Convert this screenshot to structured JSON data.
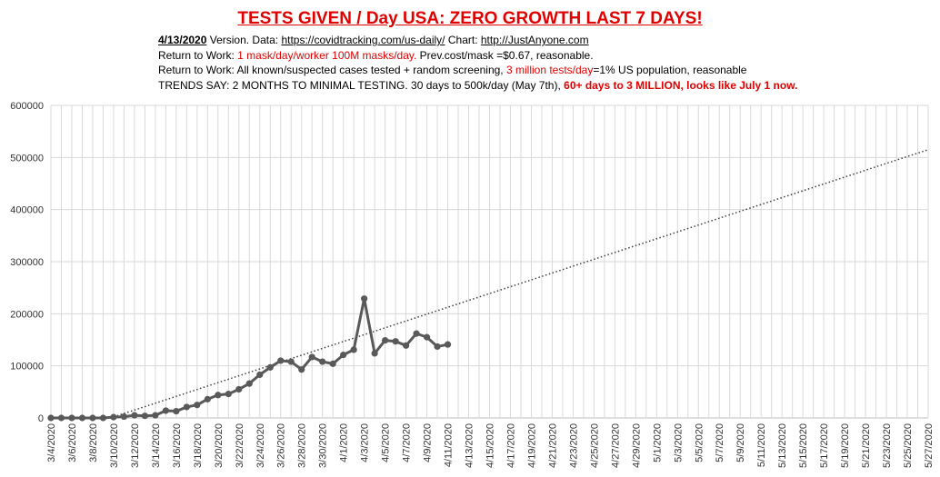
{
  "chart_data": {
    "type": "line",
    "title": "TESTS GIVEN / Day USA:  ZERO GROWTH LAST 7 DAYS!",
    "subtitle_lines": [
      {
        "parts": [
          {
            "text": "4/13/2020",
            "style": "bold ul"
          },
          {
            "text": " Version.  Data: ",
            "style": ""
          },
          {
            "text": "https://covidtracking.com/us-daily/",
            "style": "ul"
          },
          {
            "text": " Chart: ",
            "style": ""
          },
          {
            "text": "http://JustAnyone.com",
            "style": "ul"
          }
        ]
      },
      {
        "parts": [
          {
            "text": "Return to Work: ",
            "style": ""
          },
          {
            "text": "1 mask/day/worker 100M masks/day.",
            "style": "red"
          },
          {
            "text": "  Prev.cost/mask =$0.67, reasonable.",
            "style": ""
          }
        ]
      },
      {
        "parts": [
          {
            "text": "Return to Work: All known/suspected cases tested + random screening, ",
            "style": ""
          },
          {
            "text": "3 million tests/day",
            "style": "red"
          },
          {
            "text": "=1% US population, reasonable",
            "style": ""
          }
        ]
      },
      {
        "parts": [
          {
            "text": "TRENDS SAY:  2 MONTHS TO MINIMAL TESTING.  30 days to 500k/day (May 7th), ",
            "style": ""
          },
          {
            "text": "60+ days to 3 MILLION, looks like July 1 now.",
            "style": "red bold"
          }
        ]
      }
    ],
    "x_tick_labels": [
      "3/4/2020",
      "3/6/2020",
      "3/8/2020",
      "3/10/2020",
      "3/12/2020",
      "3/14/2020",
      "3/16/2020",
      "3/18/2020",
      "3/20/2020",
      "3/22/2020",
      "3/24/2020",
      "3/26/2020",
      "3/28/2020",
      "3/30/2020",
      "4/1/2020",
      "4/3/2020",
      "4/5/2020",
      "4/7/2020",
      "4/9/2020",
      "4/11/2020",
      "4/13/2020",
      "4/15/2020",
      "4/17/2020",
      "4/19/2020",
      "4/21/2020",
      "4/23/2020",
      "4/25/2020",
      "4/27/2020",
      "4/29/2020",
      "5/1/2020",
      "5/3/2020",
      "5/5/2020",
      "5/7/2020",
      "5/9/2020",
      "5/11/2020",
      "5/13/2020",
      "5/15/2020",
      "5/17/2020",
      "5/19/2020",
      "5/21/2020",
      "5/23/2020",
      "5/25/2020",
      "5/27/2020"
    ],
    "y_ticks": [
      "0",
      "100000",
      "200000",
      "300000",
      "400000",
      "500000",
      "600000"
    ],
    "ylim": [
      0,
      600000
    ],
    "x_range_days": [
      0,
      84
    ],
    "grid": true,
    "series": [
      {
        "values": [
          0,
          0,
          0,
          0,
          0,
          0,
          1500,
          2500,
          5000,
          4000,
          5000,
          14000,
          13000,
          21000,
          25000,
          36000,
          44000,
          46000,
          55000,
          66000,
          83000,
          97000,
          110000,
          108000,
          93000,
          117000,
          108000,
          104000,
          121000,
          131000,
          229000,
          124000,
          149000,
          147000,
          139000,
          162000,
          155000,
          137000,
          141000
        ],
        "color": "#595959"
      },
      {
        "trend": [
          [
            6,
            2000
          ],
          [
            84,
            515000
          ]
        ],
        "color": "#404040",
        "style": "dotted"
      }
    ]
  }
}
